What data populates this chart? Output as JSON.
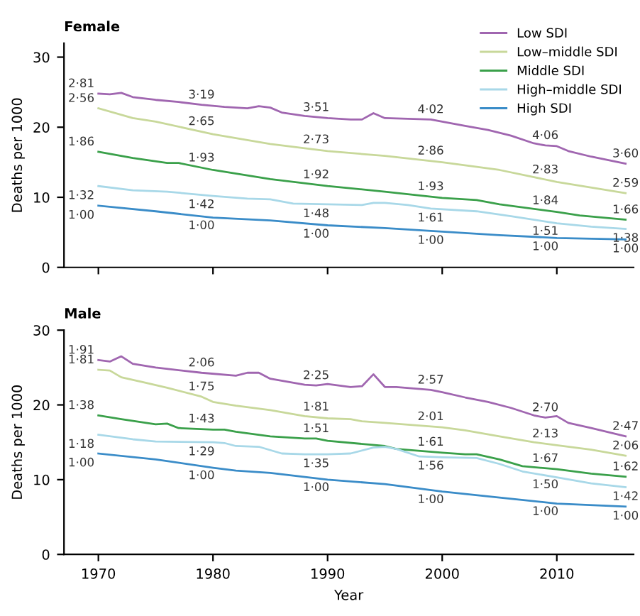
{
  "chart_data": [
    {
      "type": "line",
      "title": "Female",
      "ylabel": "Deaths per 1000",
      "xlim": [
        1967,
        2016.7
      ],
      "xticks": [
        {
          "value": 1970,
          "label": null
        },
        {
          "value": 1980,
          "label": null
        },
        {
          "value": 1990,
          "label": null
        },
        {
          "value": 2000,
          "label": null
        },
        {
          "value": 2010,
          "label": null
        }
      ],
      "ylim": [
        0,
        32
      ],
      "yticks": [
        0,
        10,
        20,
        30
      ],
      "tick_labels": "y",
      "legend": "top right",
      "grid": false,
      "marker": "none",
      "line_style": "solid",
      "series": [
        {
          "name": "Low SDI",
          "color": "#a066b0",
          "x": [
            1970,
            1971,
            1972,
            1973,
            1975,
            1977,
            1979,
            1981,
            1983,
            1984,
            1985,
            1986,
            1988,
            1990,
            1992,
            1993,
            1994,
            1995,
            1997,
            1999,
            2000,
            2002,
            2004,
            2006,
            2008,
            2009,
            2010,
            2011,
            2013,
            2016
          ],
          "values": [
            24.8,
            24.7,
            24.9,
            24.3,
            23.9,
            23.6,
            23.2,
            22.9,
            22.7,
            23.0,
            22.8,
            22.1,
            21.6,
            21.3,
            21.1,
            21.1,
            22.0,
            21.3,
            21.2,
            21.1,
            20.8,
            20.2,
            19.6,
            18.8,
            17.7,
            17.4,
            17.3,
            16.6,
            15.8,
            14.8
          ]
        },
        {
          "name": "Low–middle SDI",
          "color": "#c8d89a",
          "x": [
            1970,
            1973,
            1975,
            1980,
            1985,
            1990,
            1995,
            2000,
            2005,
            2010,
            2016
          ],
          "values": [
            22.7,
            21.3,
            20.8,
            19.0,
            17.6,
            16.6,
            15.9,
            15.0,
            13.9,
            12.2,
            10.6
          ]
        },
        {
          "name": "Middle SDI",
          "color": "#3aa04a",
          "x": [
            1970,
            1973,
            1976,
            1977,
            1980,
            1985,
            1990,
            1995,
            2000,
            2003,
            2005,
            2010,
            2012,
            2016
          ],
          "values": [
            16.5,
            15.6,
            14.9,
            14.9,
            13.9,
            12.6,
            11.6,
            10.8,
            9.9,
            9.6,
            9.0,
            7.9,
            7.4,
            6.8
          ]
        },
        {
          "name": "High–middle SDI",
          "color": "#a8d8e8",
          "x": [
            1970,
            1973,
            1976,
            1980,
            1983,
            1985,
            1987,
            1990,
            1993,
            1994,
            1995,
            1997,
            1999,
            2003,
            2006,
            2010,
            2013,
            2016
          ],
          "values": [
            11.6,
            11.0,
            10.8,
            10.2,
            9.8,
            9.7,
            9.1,
            9.0,
            8.9,
            9.2,
            9.2,
            8.9,
            8.4,
            8.0,
            7.3,
            6.3,
            5.8,
            5.5
          ]
        },
        {
          "name": "High SDI",
          "color": "#3a8cc8",
          "x": [
            1970,
            1975,
            1980,
            1985,
            1990,
            1995,
            2000,
            2005,
            2010,
            2016
          ],
          "values": [
            8.8,
            8.0,
            7.1,
            6.7,
            6.0,
            5.6,
            5.1,
            4.6,
            4.2,
            4.0
          ]
        }
      ],
      "annotations": [
        {
          "text": "2·81",
          "x": 1970,
          "y": 24.8
        },
        {
          "text": "2·56",
          "x": 1970,
          "y": 22.7
        },
        {
          "text": "1·86",
          "x": 1970,
          "y": 16.5
        },
        {
          "text": "1·32",
          "x": 1970,
          "y": 11.6
        },
        {
          "text": "1·00",
          "x": 1970,
          "y": 8.8
        },
        {
          "text": "3·19",
          "x": 1979,
          "y": 23.2
        },
        {
          "text": "2·65",
          "x": 1979,
          "y": 19.4
        },
        {
          "text": "1·93",
          "x": 1979,
          "y": 14.2
        },
        {
          "text": "1·42",
          "x": 1979,
          "y": 10.3
        },
        {
          "text": "1·00",
          "x": 1979,
          "y": 7.3
        },
        {
          "text": "3·51",
          "x": 1989,
          "y": 21.4
        },
        {
          "text": "2·73",
          "x": 1989,
          "y": 16.8
        },
        {
          "text": "1·92",
          "x": 1989,
          "y": 11.8
        },
        {
          "text": "1·48",
          "x": 1989,
          "y": 9.0
        },
        {
          "text": "1·00",
          "x": 1989,
          "y": 6.1
        },
        {
          "text": "4·02",
          "x": 1999,
          "y": 21.1
        },
        {
          "text": "2·86",
          "x": 1999,
          "y": 15.2
        },
        {
          "text": "1·93",
          "x": 1999,
          "y": 10.1
        },
        {
          "text": "1·61",
          "x": 1999,
          "y": 8.4
        },
        {
          "text": "1·00",
          "x": 1999,
          "y": 5.2
        },
        {
          "text": "4·06",
          "x": 2009,
          "y": 17.4
        },
        {
          "text": "2·83",
          "x": 2009,
          "y": 12.5
        },
        {
          "text": "1·84",
          "x": 2009,
          "y": 8.1
        },
        {
          "text": "1·51",
          "x": 2009,
          "y": 6.5
        },
        {
          "text": "1·00",
          "x": 2009,
          "y": 4.3
        },
        {
          "text": "3·60",
          "x": 2016,
          "y": 14.8
        },
        {
          "text": "2·59",
          "x": 2016,
          "y": 10.6
        },
        {
          "text": "1·66",
          "x": 2016,
          "y": 6.8
        },
        {
          "text": "1·38",
          "x": 2016,
          "y": 5.5
        },
        {
          "text": "1·00",
          "x": 2016,
          "y": 4.0
        }
      ]
    },
    {
      "type": "line",
      "title": "Male",
      "xlabel": "Year",
      "ylabel": "Deaths per 1000",
      "xlim": [
        1967,
        2016.7
      ],
      "xticks": [
        1970,
        1980,
        1990,
        2000,
        2010
      ],
      "ylim": [
        0,
        30
      ],
      "yticks": [
        0,
        10,
        20,
        30
      ],
      "legend": false,
      "grid": false,
      "marker": "none",
      "line_style": "solid",
      "series": [
        {
          "color": "#a066b0",
          "x": [
            1970,
            1971,
            1972,
            1973,
            1975,
            1979,
            1982,
            1983,
            1984,
            1985,
            1988,
            1989,
            1990,
            1992,
            1993,
            1994,
            1995,
            1996,
            1999,
            2000,
            2002,
            2004,
            2006,
            2008,
            2009,
            2010,
            2011,
            2013,
            2016
          ],
          "values": [
            26.0,
            25.8,
            26.5,
            25.5,
            25.0,
            24.3,
            23.9,
            24.3,
            24.3,
            23.5,
            22.7,
            22.6,
            22.8,
            22.4,
            22.5,
            24.1,
            22.4,
            22.4,
            22.0,
            21.7,
            21.0,
            20.4,
            19.6,
            18.6,
            18.3,
            18.5,
            17.6,
            16.9,
            15.8
          ]
        },
        {
          "color": "#c8d89a",
          "x": [
            1970,
            1971,
            1972,
            1974,
            1976,
            1979,
            1980,
            1982,
            1985,
            1988,
            1990,
            1992,
            1993,
            1995,
            2000,
            2002,
            2005,
            2008,
            2010,
            2013,
            2016
          ],
          "values": [
            24.7,
            24.6,
            23.7,
            23.0,
            22.3,
            21.1,
            20.4,
            19.9,
            19.3,
            18.5,
            18.2,
            18.1,
            17.8,
            17.6,
            17.0,
            16.6,
            15.8,
            15.0,
            14.6,
            14.0,
            13.2
          ]
        },
        {
          "color": "#3aa04a",
          "x": [
            1970,
            1972,
            1975,
            1976,
            1977,
            1980,
            1981,
            1982,
            1985,
            1988,
            1989,
            1990,
            1995,
            1996,
            2000,
            2002,
            2003,
            2005,
            2007,
            2010,
            2013,
            2016
          ],
          "values": [
            18.6,
            18.1,
            17.4,
            17.5,
            16.9,
            16.7,
            16.7,
            16.4,
            15.8,
            15.5,
            15.5,
            15.2,
            14.5,
            14.1,
            13.6,
            13.4,
            13.4,
            12.7,
            11.8,
            11.4,
            10.8,
            10.4
          ]
        },
        {
          "color": "#a8d8e8",
          "x": [
            1970,
            1973,
            1975,
            1980,
            1981,
            1982,
            1984,
            1986,
            1988,
            1990,
            1992,
            1994,
            1995,
            1996,
            1998,
            2000,
            2003,
            2005,
            2007,
            2010,
            2013,
            2016
          ],
          "values": [
            16.0,
            15.4,
            15.1,
            15.0,
            14.9,
            14.5,
            14.4,
            13.5,
            13.4,
            13.4,
            13.5,
            14.3,
            14.4,
            14.1,
            13.1,
            13.0,
            12.9,
            12.1,
            11.1,
            10.3,
            9.5,
            9.0
          ]
        },
        {
          "color": "#3a8cc8",
          "x": [
            1970,
            1975,
            1980,
            1982,
            1985,
            1990,
            1995,
            2000,
            2005,
            2010,
            2016
          ],
          "values": [
            13.5,
            12.7,
            11.6,
            11.2,
            10.9,
            10.0,
            9.4,
            8.4,
            7.6,
            6.8,
            6.4
          ]
        }
      ],
      "annotations": [
        {
          "text": "1·91",
          "x": 1970,
          "y": 26.0
        },
        {
          "text": "1·81",
          "x": 1970,
          "y": 24.7
        },
        {
          "text": "1·38",
          "x": 1970,
          "y": 18.6
        },
        {
          "text": "1·18",
          "x": 1970,
          "y": 16.0
        },
        {
          "text": "1·00",
          "x": 1970,
          "y": 13.5
        },
        {
          "text": "2·06",
          "x": 1979,
          "y": 24.3
        },
        {
          "text": "1·75",
          "x": 1979,
          "y": 21.1
        },
        {
          "text": "1·43",
          "x": 1979,
          "y": 16.8
        },
        {
          "text": "1·29",
          "x": 1979,
          "y": 15.0
        },
        {
          "text": "1·00",
          "x": 1979,
          "y": 11.8
        },
        {
          "text": "2·25",
          "x": 1989,
          "y": 22.6
        },
        {
          "text": "1·81",
          "x": 1989,
          "y": 18.4
        },
        {
          "text": "1·51",
          "x": 1989,
          "y": 15.5
        },
        {
          "text": "1·35",
          "x": 1989,
          "y": 13.4
        },
        {
          "text": "1·00",
          "x": 1989,
          "y": 10.2
        },
        {
          "text": "2·57",
          "x": 1999,
          "y": 22.0
        },
        {
          "text": "2·01",
          "x": 1999,
          "y": 17.1
        },
        {
          "text": "1·61",
          "x": 1999,
          "y": 13.7
        },
        {
          "text": "1·56",
          "x": 1999,
          "y": 13.1
        },
        {
          "text": "1·00",
          "x": 1999,
          "y": 8.6
        },
        {
          "text": "2·70",
          "x": 2009,
          "y": 18.3
        },
        {
          "text": "2·13",
          "x": 2009,
          "y": 14.8
        },
        {
          "text": "1·67",
          "x": 2009,
          "y": 11.5
        },
        {
          "text": "1·50",
          "x": 2009,
          "y": 10.6
        },
        {
          "text": "1·00",
          "x": 2009,
          "y": 7.0
        },
        {
          "text": "2·47",
          "x": 2016,
          "y": 15.8
        },
        {
          "text": "2·06",
          "x": 2016,
          "y": 13.2
        },
        {
          "text": "1·62",
          "x": 2016,
          "y": 10.4
        },
        {
          "text": "1·42",
          "x": 2016,
          "y": 9.0
        },
        {
          "text": "1·00",
          "x": 2016,
          "y": 6.4
        }
      ]
    }
  ]
}
